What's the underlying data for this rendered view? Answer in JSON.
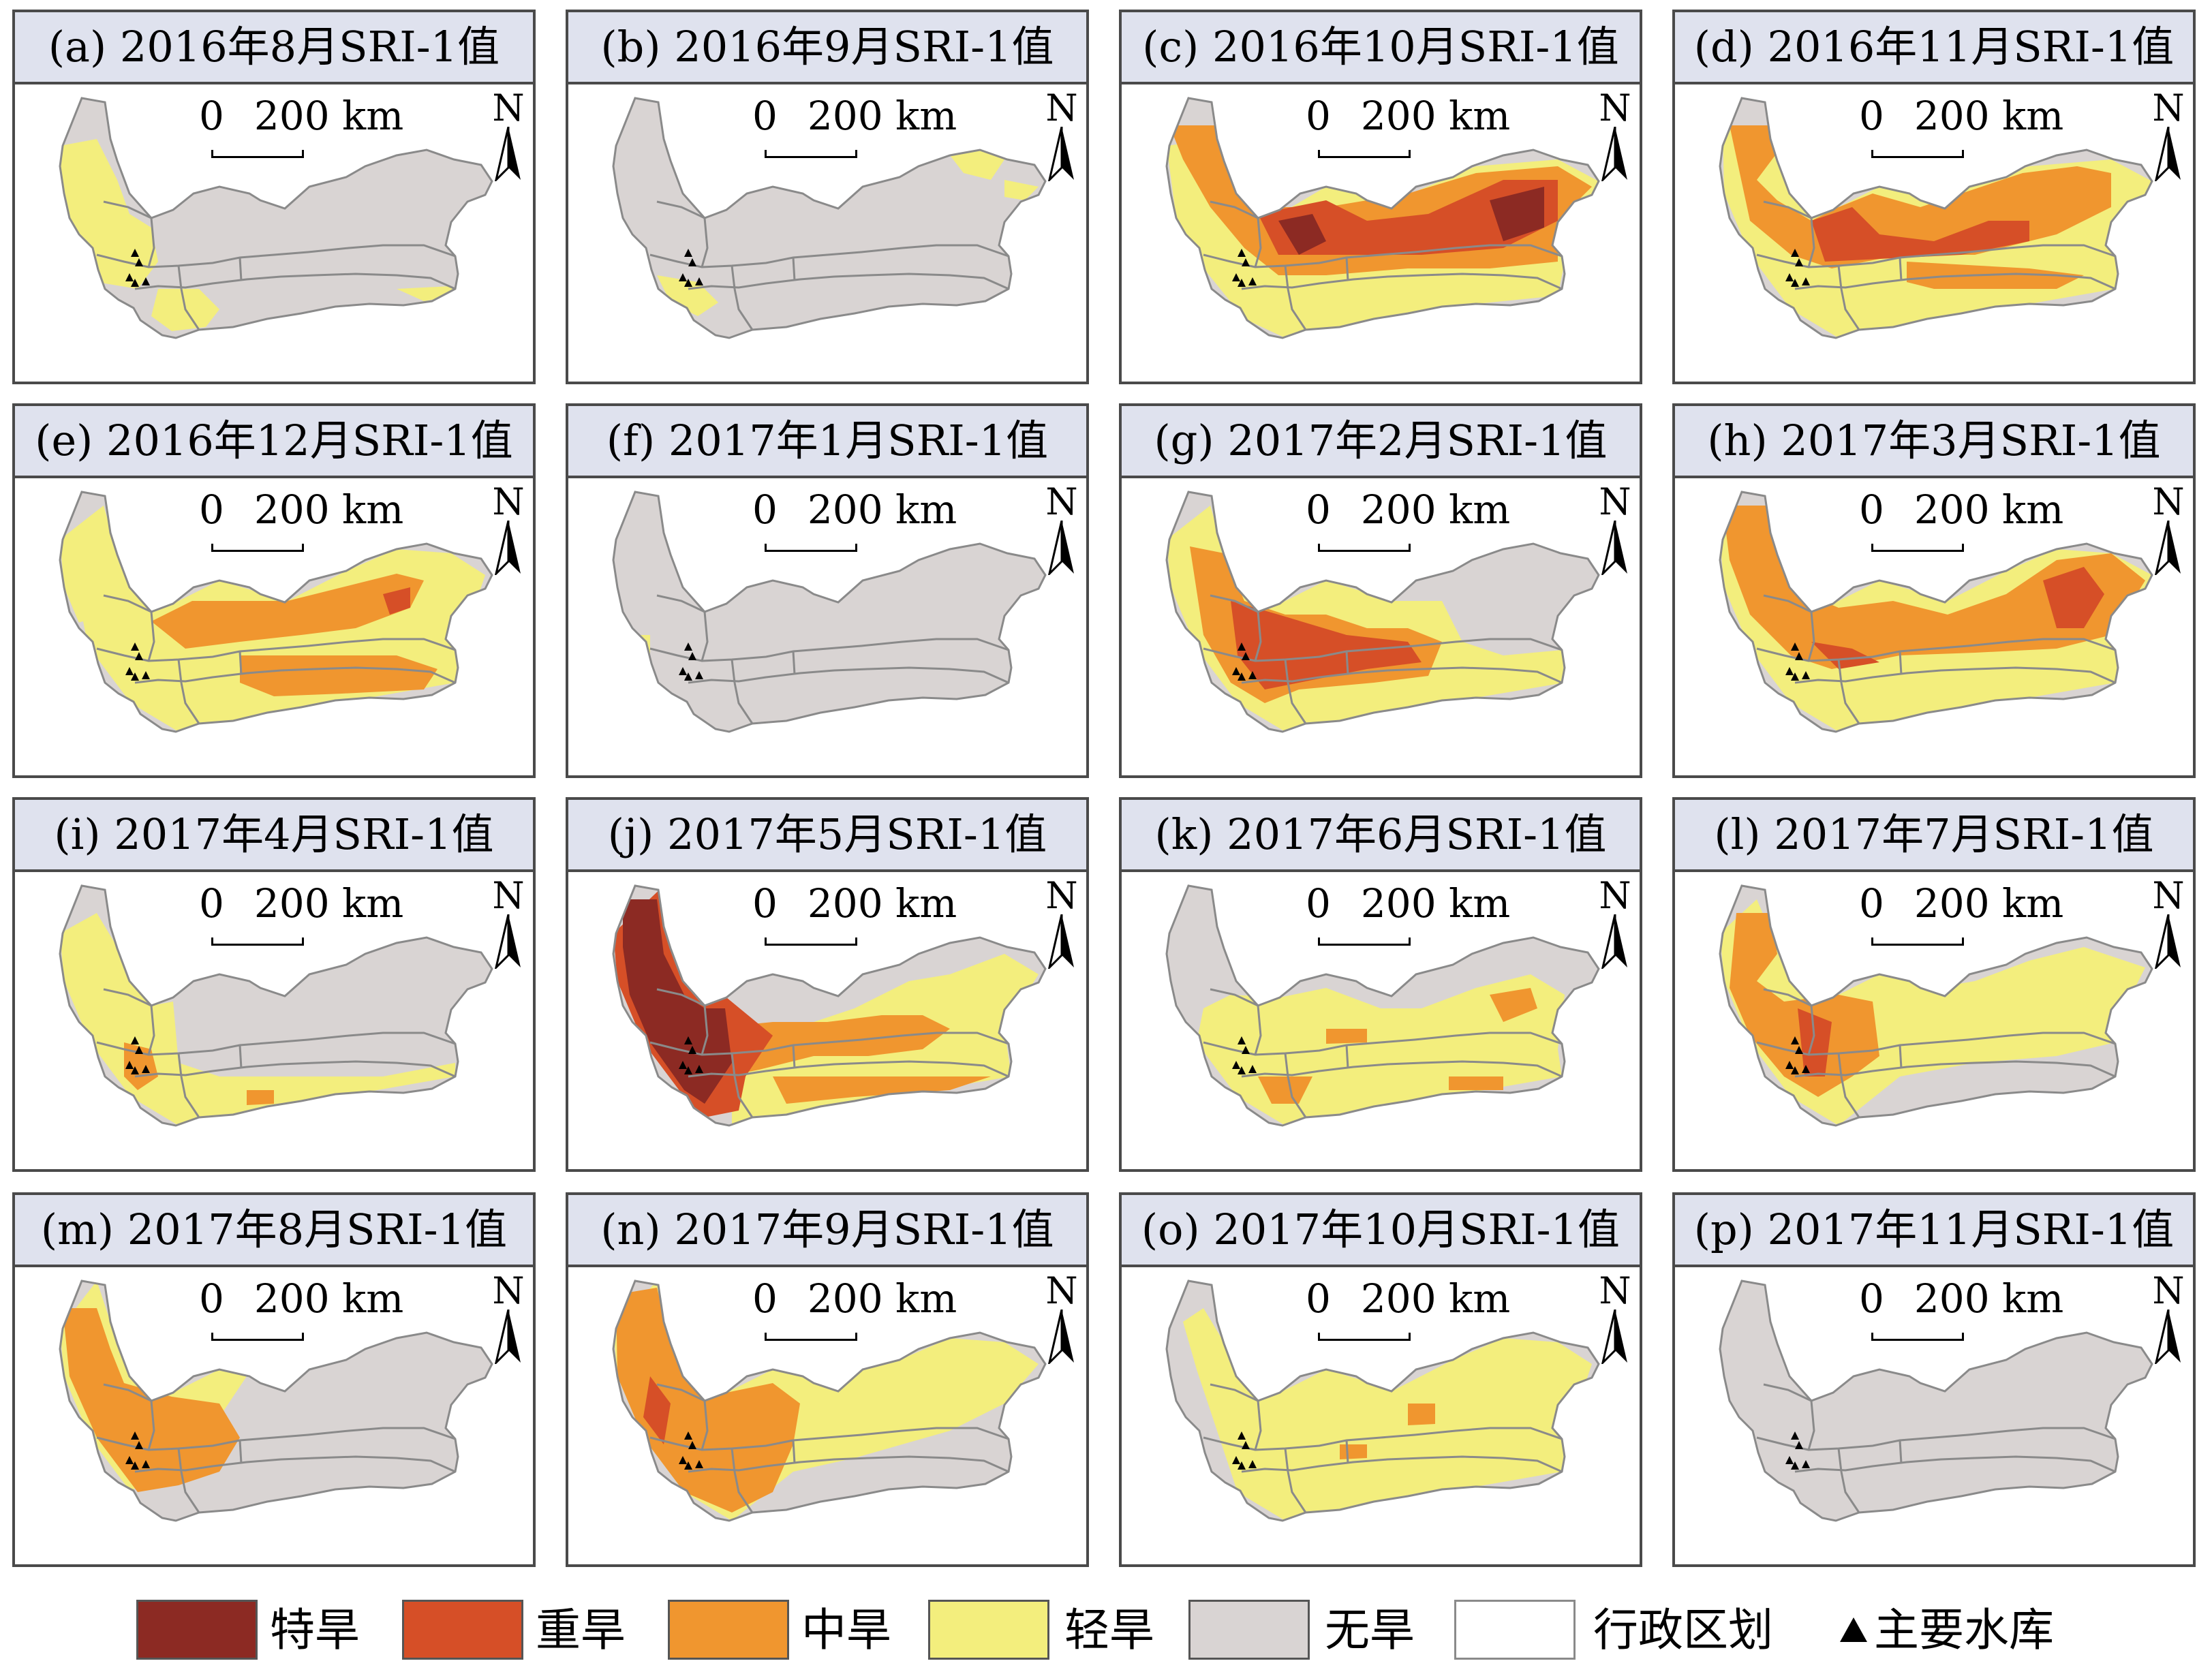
{
  "figure": {
    "panels": [
      {
        "title": "(a) 2016年8月SRI-1值",
        "pattern": "a"
      },
      {
        "title": "(b) 2016年9月SRI-1值",
        "pattern": "b"
      },
      {
        "title": "(c) 2016年10月SRI-1值",
        "pattern": "c"
      },
      {
        "title": "(d) 2016年11月SRI-1值",
        "pattern": "d"
      },
      {
        "title": "(e) 2016年12月SRI-1值",
        "pattern": "e"
      },
      {
        "title": "(f) 2017年1月SRI-1值",
        "pattern": "f"
      },
      {
        "title": "(g) 2017年2月SRI-1值",
        "pattern": "g"
      },
      {
        "title": "(h) 2017年3月SRI-1值",
        "pattern": "h"
      },
      {
        "title": "(i) 2017年4月SRI-1值",
        "pattern": "i"
      },
      {
        "title": "(j) 2017年5月SRI-1值",
        "pattern": "j"
      },
      {
        "title": "(k) 2017年6月SRI-1值",
        "pattern": "k"
      },
      {
        "title": "(l) 2017年7月SRI-1值",
        "pattern": "l"
      },
      {
        "title": "(m) 2017年8月SRI-1值",
        "pattern": "m"
      },
      {
        "title": "(n) 2017年9月SRI-1值",
        "pattern": "n"
      },
      {
        "title": "(o) 2017年10月SRI-1值",
        "pattern": "o"
      },
      {
        "title": "(p) 2017年11月SRI-1值",
        "pattern": "p"
      }
    ],
    "scale": {
      "zero": "0",
      "distance": "200 km"
    },
    "north_label": "N",
    "legend": {
      "classes": [
        {
          "label": "特旱",
          "color": "#8c2a23"
        },
        {
          "label": "重旱",
          "color": "#d64f27"
        },
        {
          "label": "中旱",
          "color": "#f0962f"
        },
        {
          "label": "轻旱",
          "color": "#f3ee7d"
        },
        {
          "label": "无旱",
          "color": "#d9d4d3"
        }
      ],
      "boundary": {
        "label": "行政区划",
        "color": "#ffffff",
        "stroke": "#8a8a8a"
      },
      "reservoir": {
        "label": "主要水库",
        "icon": "triangle-icon"
      }
    }
  }
}
